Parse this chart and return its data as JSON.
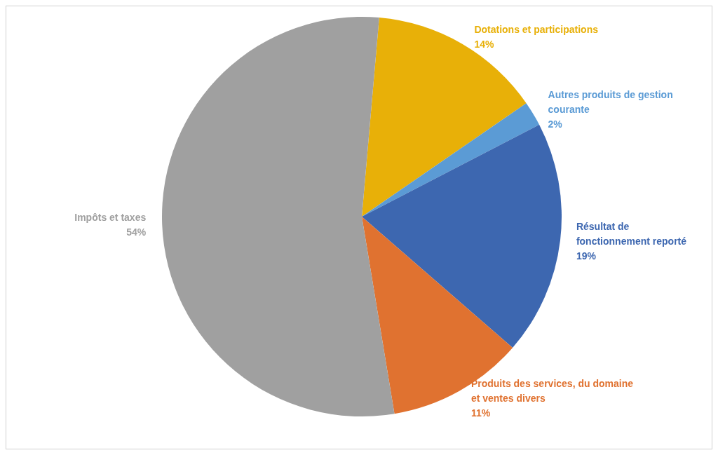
{
  "chart_data": {
    "type": "pie",
    "categories": [
      "Dotations et participations",
      "Autres produits de gestion courante",
      "Résultat de fonctionnement reporté",
      "Produits des services, du domaine et ventes divers",
      "Impôts et taxes"
    ],
    "values": [
      14,
      2,
      19,
      11,
      54
    ],
    "colors": [
      "#e8b008",
      "#5b9bd5",
      "#3d67b0",
      "#e07230",
      "#a0a0a0"
    ],
    "value_labels": [
      "14%",
      "2%",
      "19%",
      "11%",
      "54%"
    ],
    "legend": false
  }
}
